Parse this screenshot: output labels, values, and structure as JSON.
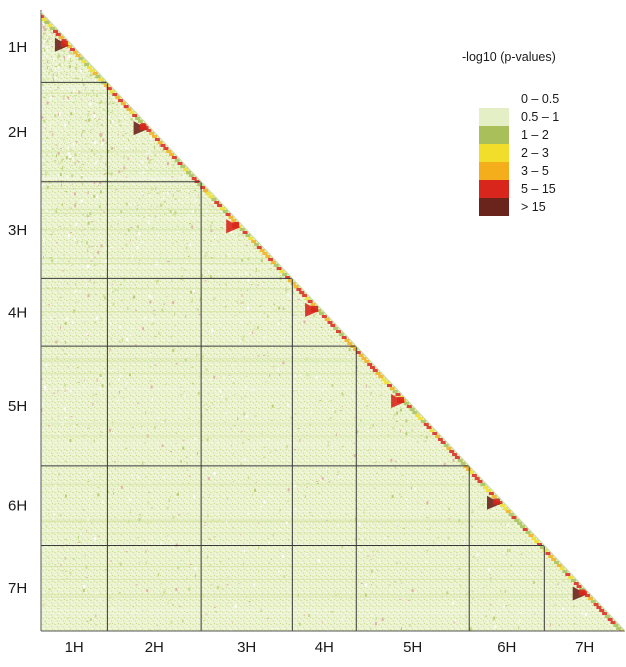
{
  "chart_data": {
    "type": "heatmap",
    "title": "",
    "layout": "lower-triangular pairwise matrix",
    "chromosomes": [
      "1H",
      "2H",
      "3H",
      "4H",
      "5H",
      "6H",
      "7H"
    ],
    "relative_sizes": [
      0.107,
      0.151,
      0.147,
      0.103,
      0.182,
      0.121,
      0.13
    ],
    "legend": {
      "title": "-log10 (p-values)",
      "position": "top-right",
      "bins": [
        {
          "label": "0 – 0.5",
          "color": "#ffffff"
        },
        {
          "label": "0.5 – 1",
          "color": "#e4efc5"
        },
        {
          "label": "1 – 2",
          "color": "#a9c05a"
        },
        {
          "label": "2 – 3",
          "color": "#f1de2a"
        },
        {
          "label": "3 – 5",
          "color": "#f4ae1c"
        },
        {
          "label": "5 – 15",
          "color": "#d9261c"
        },
        {
          "label": "> 15",
          "color": "#6b241c"
        }
      ]
    },
    "pattern": {
      "background_bin": "0.5 – 1",
      "high_values_near_diagonal": true,
      "diagonal_hotspots": [
        {
          "chromosome": "1H",
          "bin": "> 15"
        },
        {
          "chromosome": "2H",
          "bin": "> 15"
        },
        {
          "chromosome": "3H",
          "bin": "5 – 15"
        },
        {
          "chromosome": "4H",
          "bin": "5 – 15"
        },
        {
          "chromosome": "5H",
          "bin": "5 – 15"
        },
        {
          "chromosome": "6H",
          "bin": "> 15"
        },
        {
          "chromosome": "7H",
          "bin": "> 15"
        }
      ]
    },
    "grid": true
  },
  "colors": {
    "background_texture": "#e7f0c9",
    "grid_line": "#3a3a3a",
    "axis_line": "#555555"
  }
}
